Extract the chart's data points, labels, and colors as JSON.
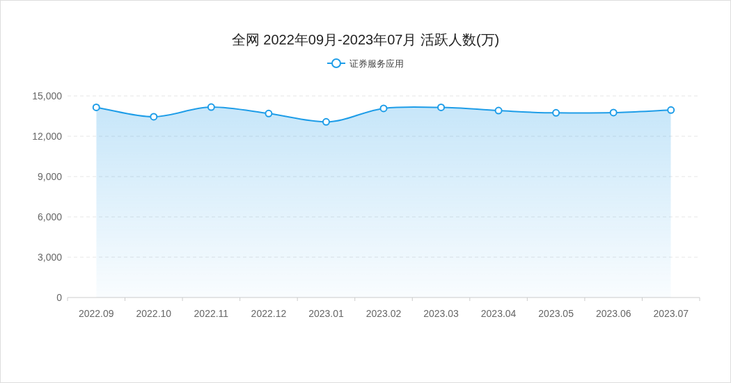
{
  "chart_data": {
    "type": "area",
    "title": "全网 2022年09月-2023年07月 活跃人数(万)",
    "categories": [
      "2022.09",
      "2022.10",
      "2022.11",
      "2022.12",
      "2023.01",
      "2023.02",
      "2023.03",
      "2023.04",
      "2023.05",
      "2023.06",
      "2023.07"
    ],
    "series": [
      {
        "name": "证券服务应用",
        "color": "#1e9de8",
        "values": [
          14150,
          13450,
          14170,
          13690,
          13070,
          14070,
          14150,
          13910,
          13740,
          13760,
          13950
        ]
      }
    ],
    "ylim": [
      0,
      15000
    ],
    "yticks": [
      {
        "value": 0,
        "label": "0"
      },
      {
        "value": 3000,
        "label": "3,000"
      },
      {
        "value": 6000,
        "label": "6,000"
      },
      {
        "value": 9000,
        "label": "9,000"
      },
      {
        "value": 12000,
        "label": "12,000"
      },
      {
        "value": 15000,
        "label": "15,000"
      }
    ],
    "grid": "y",
    "legend": "top",
    "marker": "circle"
  }
}
